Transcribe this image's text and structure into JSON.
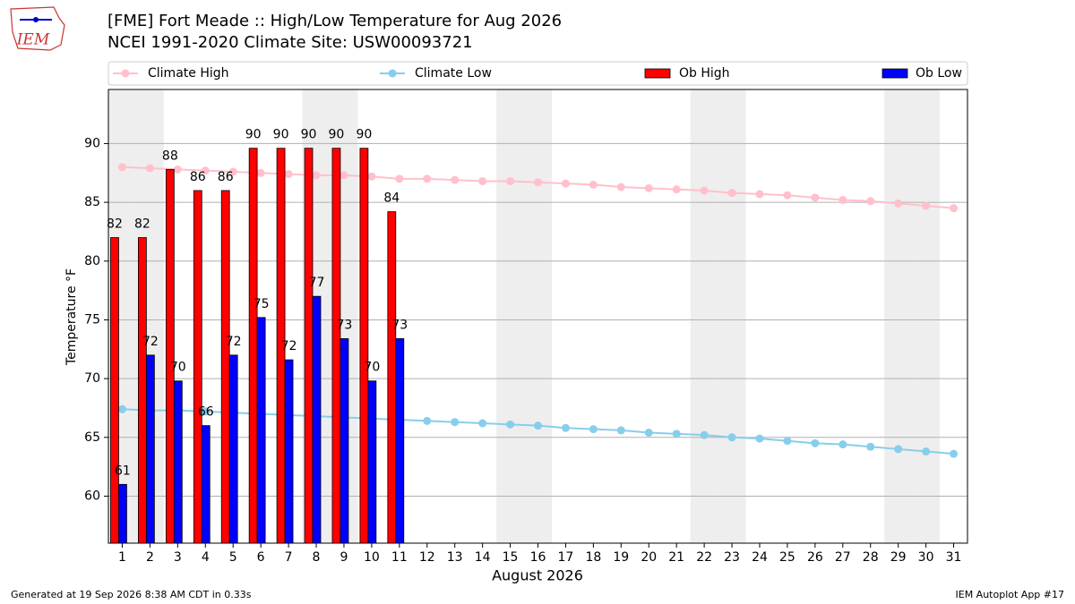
{
  "chart_data": {
    "type": "bar",
    "logo_text": "IEM",
    "title": "[FME] Fort Meade :: High/Low Temperature for Aug 2026",
    "subtitle": "NCEI 1991-2020 Climate Site: USW00093721",
    "xlabel": "August 2026",
    "ylabel": "Temperature °F",
    "footer_left": "Generated at 19 Sep 2026 8:38 AM CDT in 0.33s",
    "footer_right": "IEM Autoplot App #17",
    "x": [
      1,
      2,
      3,
      4,
      5,
      6,
      7,
      8,
      9,
      10,
      11,
      12,
      13,
      14,
      15,
      16,
      17,
      18,
      19,
      20,
      21,
      22,
      23,
      24,
      25,
      26,
      27,
      28,
      29,
      30,
      31
    ],
    "xlim": [
      0.5,
      31.5
    ],
    "xticks": [
      1,
      2,
      3,
      4,
      5,
      6,
      7,
      8,
      9,
      10,
      11,
      12,
      13,
      14,
      15,
      16,
      17,
      18,
      19,
      20,
      21,
      22,
      23,
      24,
      25,
      26,
      27,
      28,
      29,
      30,
      31
    ],
    "ylim": [
      56,
      94.6
    ],
    "yticks": [
      60,
      65,
      70,
      75,
      80,
      85,
      90
    ],
    "grid": true,
    "shaded_days": [
      1,
      2,
      8,
      9,
      15,
      16,
      22,
      23,
      29,
      30
    ],
    "series": [
      {
        "name": "Climate High",
        "type": "line",
        "color": "#ffc0cb",
        "values": [
          88.0,
          87.9,
          87.8,
          87.7,
          87.6,
          87.5,
          87.4,
          87.3,
          87.3,
          87.2,
          87.0,
          87.0,
          86.9,
          86.8,
          86.8,
          86.7,
          86.6,
          86.5,
          86.3,
          86.2,
          86.1,
          86.0,
          85.8,
          85.7,
          85.6,
          85.4,
          85.2,
          85.1,
          84.9,
          84.7,
          84.5
        ]
      },
      {
        "name": "Climate Low",
        "type": "line",
        "color": "#87ceeb",
        "values": [
          67.4,
          67.3,
          67.3,
          67.2,
          67.1,
          67.0,
          66.9,
          66.8,
          66.7,
          66.6,
          66.5,
          66.4,
          66.3,
          66.2,
          66.1,
          66.0,
          65.8,
          65.7,
          65.6,
          65.4,
          65.3,
          65.2,
          65.0,
          64.9,
          64.7,
          64.5,
          64.4,
          64.2,
          64.0,
          63.8,
          63.6
        ]
      },
      {
        "name": "Ob High",
        "type": "bar",
        "color": "#ff0000",
        "values": [
          82.0,
          82.0,
          87.8,
          86.0,
          86.0,
          89.6,
          89.6,
          89.6,
          89.6,
          89.6,
          84.2,
          null,
          null,
          null,
          null,
          null,
          null,
          null,
          null,
          null,
          null,
          null,
          null,
          null,
          null,
          null,
          null,
          null,
          null,
          null,
          null
        ],
        "value_labels": [
          "82",
          "82",
          "88",
          "86",
          "86",
          "90",
          "90",
          "90",
          "90",
          "90",
          "84",
          null,
          null,
          null,
          null,
          null,
          null,
          null,
          null,
          null,
          null,
          null,
          null,
          null,
          null,
          null,
          null,
          null,
          null,
          null,
          null
        ]
      },
      {
        "name": "Ob Low",
        "type": "bar",
        "color": "#0000ff",
        "values": [
          61.0,
          72.0,
          69.8,
          66.0,
          72.0,
          75.2,
          71.6,
          77.0,
          73.4,
          69.8,
          73.4,
          null,
          null,
          null,
          null,
          null,
          null,
          null,
          null,
          null,
          null,
          null,
          null,
          null,
          null,
          null,
          null,
          null,
          null,
          null,
          null
        ],
        "value_labels": [
          "61",
          "72",
          "70",
          "66",
          "72",
          "75",
          "72",
          "77",
          "73",
          "70",
          "73",
          null,
          null,
          null,
          null,
          null,
          null,
          null,
          null,
          null,
          null,
          null,
          null,
          null,
          null,
          null,
          null,
          null,
          null,
          null,
          null
        ]
      }
    ]
  }
}
